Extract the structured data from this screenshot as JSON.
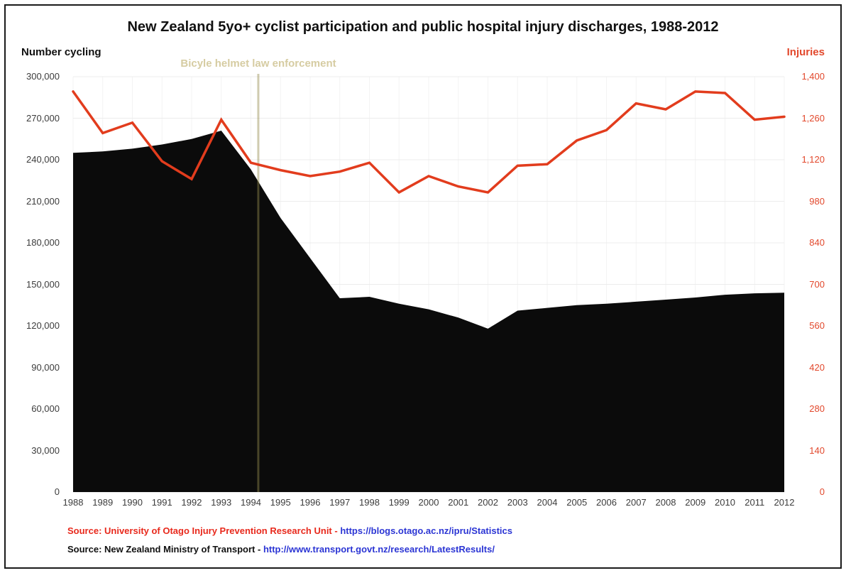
{
  "title": "New Zealand 5yo+ cyclist participation and public hospital injury discharges, 1988-2012",
  "left_axis": {
    "label": "Number cycling",
    "color": "#111111",
    "ticks": [
      {
        "value": 300000,
        "label": "300,000"
      },
      {
        "value": 270000,
        "label": "270,000"
      },
      {
        "value": 240000,
        "label": "240,000"
      },
      {
        "value": 210000,
        "label": "210,000"
      },
      {
        "value": 180000,
        "label": "180,000"
      },
      {
        "value": 150000,
        "label": "150,000"
      },
      {
        "value": 120000,
        "label": "120,000"
      },
      {
        "value": 90000,
        "label": "90,000"
      },
      {
        "value": 60000,
        "label": "60,000"
      },
      {
        "value": 30000,
        "label": "30,000"
      },
      {
        "value": 0,
        "label": "0"
      }
    ]
  },
  "right_axis": {
    "label": "Injuries",
    "color": "#e2482c",
    "ticks": [
      {
        "value": 1400,
        "label": "1,400"
      },
      {
        "value": 1260,
        "label": "1,260"
      },
      {
        "value": 1120,
        "label": "1,120"
      },
      {
        "value": 980,
        "label": "980"
      },
      {
        "value": 840,
        "label": "840"
      },
      {
        "value": 700,
        "label": "700"
      },
      {
        "value": 560,
        "label": "560"
      },
      {
        "value": 420,
        "label": "420"
      },
      {
        "value": 280,
        "label": "280"
      },
      {
        "value": 140,
        "label": "140"
      },
      {
        "value": 0,
        "label": "0"
      }
    ]
  },
  "annotation": {
    "label": "Bicyle helmet law enforcement",
    "x_year": 1994.25,
    "text_color": "#d6cca2",
    "line_color": "rgba(148,140,78,0.45)"
  },
  "chart_data": {
    "type": "area+line",
    "title": "New Zealand 5yo+ cyclist participation and public hospital injury discharges, 1988-2012",
    "x": [
      1988,
      1989,
      1990,
      1991,
      1992,
      1993,
      1994,
      1995,
      1996,
      1997,
      1998,
      1999,
      2000,
      2001,
      2002,
      2003,
      2004,
      2005,
      2006,
      2007,
      2008,
      2009,
      2010,
      2011,
      2012
    ],
    "series": [
      {
        "name": "Number cycling",
        "type": "area",
        "axis": "left",
        "color": "#0b0b0b",
        "values": [
          245000,
          246000,
          248000,
          251000,
          255000,
          261000,
          233000,
          198000,
          169000,
          140000,
          141000,
          136000,
          132000,
          126000,
          118000,
          131000,
          133000,
          135000,
          136000,
          137500,
          139000,
          140500,
          142500,
          143500,
          144000
        ]
      },
      {
        "name": "Injuries",
        "type": "line",
        "axis": "right",
        "color": "#e23c1d",
        "values": [
          1350,
          1210,
          1245,
          1115,
          1055,
          1255,
          1110,
          1085,
          1065,
          1080,
          1110,
          1010,
          1065,
          1030,
          1010,
          1100,
          1105,
          1185,
          1220,
          1310,
          1290,
          1350,
          1345,
          1255,
          1265
        ]
      }
    ],
    "left_ylim": [
      0,
      300000
    ],
    "right_ylim": [
      0,
      1400
    ],
    "grid": true,
    "legend_position": "none",
    "vline_x": 1994.25,
    "vline_label": "Bicyle helmet law enforcement"
  },
  "sources": [
    {
      "prefix": "Source: University of Otago Injury Prevention Research Unit - ",
      "prefix_color": "#e8291c",
      "link": "https://blogs.otago.ac.nz/ipru/Statistics"
    },
    {
      "prefix": "Source: New Zealand Ministry of Transport - ",
      "prefix_color": "#111111",
      "link": "http://www.transport.govt.nz/research/LatestResults/"
    }
  ],
  "link_color": "#2b35d4"
}
